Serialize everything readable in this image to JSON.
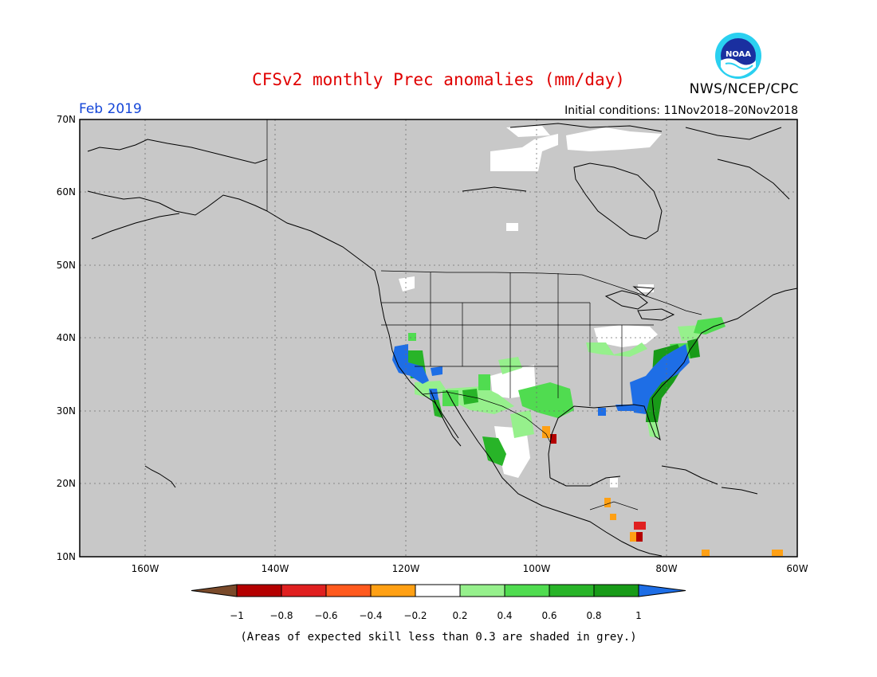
{
  "header": {
    "title": "CFSv2 monthly Prec anomalies (mm/day)",
    "org": "NWS/NCEP/CPC",
    "month": "Feb 2019",
    "initial_conditions": "Initial conditions: 11Nov2018–20Nov2018",
    "logo_text": "NOAA"
  },
  "map": {
    "lat_labels": [
      "70N",
      "60N",
      "50N",
      "40N",
      "30N",
      "20N",
      "10N"
    ],
    "lon_labels": [
      "160W",
      "140W",
      "120W",
      "100W",
      "80W",
      "60W"
    ],
    "lon_range": [
      -170,
      -60
    ],
    "lat_range": [
      10,
      70
    ],
    "background_color": "#c8c8c8",
    "gridlines": true
  },
  "colorbar": {
    "labels": [
      "−1",
      "−0.8",
      "−0.6",
      "−0.4",
      "−0.2",
      "0.2",
      "0.4",
      "0.6",
      "0.8",
      "1"
    ],
    "colors": [
      "#7a4a2a",
      "#b40000",
      "#e02020",
      "#ff5a1e",
      "#ffa014",
      "#ffffff",
      "#96f08c",
      "#50dc50",
      "#28b428",
      "#189b18",
      "#1e6ee6"
    ]
  },
  "footer": {
    "note": "(Areas of expected skill less than 0.3 are shaded in grey.)"
  }
}
